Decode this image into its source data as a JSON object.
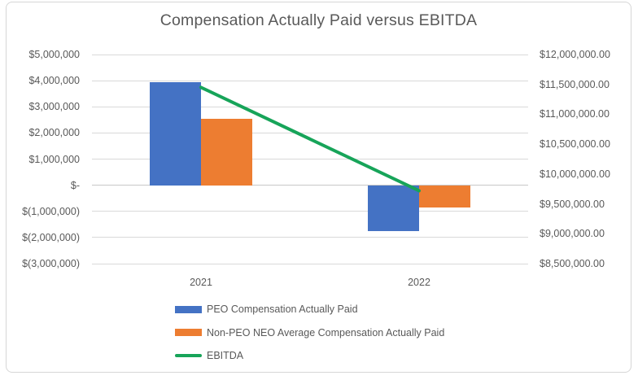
{
  "chart_data": {
    "type": "combo",
    "title": "Compensation Actually Paid versus EBITDA",
    "categories": [
      "2021",
      "2022"
    ],
    "series": [
      {
        "name": "PEO Compensation Actually Paid",
        "type": "bar",
        "axis": "left",
        "color": "#4472C4",
        "values": [
          3950000,
          -1750000
        ]
      },
      {
        "name": "Non-PEO NEO Average Compensation Actually Paid",
        "type": "bar",
        "axis": "left",
        "color": "#ED7D31",
        "values": [
          2550000,
          -850000
        ]
      },
      {
        "name": "EBITDA",
        "type": "line",
        "axis": "right",
        "color": "#17A459",
        "values": [
          11450000,
          9720000
        ]
      }
    ],
    "left_axis": {
      "min": -3000000,
      "max": 5000000,
      "step": 1000000,
      "tick_labels": [
        "$5,000,000",
        "$4,000,000",
        "$3,000,000",
        "$2,000,000",
        "$1,000,000",
        "$-",
        "$(1,000,000)",
        "$(2,000,000)",
        "$(3,000,000)"
      ]
    },
    "right_axis": {
      "min": 8500000,
      "max": 12000000,
      "step": 500000,
      "tick_labels": [
        "$12,000,000.00",
        "$11,500,000.00",
        "$11,000,000.00",
        "$10,500,000.00",
        "$10,000,000.00",
        "$9,500,000.00",
        "$9,000,000.00",
        "$8,500,000.00"
      ]
    },
    "grid": true,
    "legend_position": "bottom-left"
  },
  "colors": {
    "grid": "#D9D9D9",
    "axis_line": "#C8C8C8",
    "frame_border": "#D6D6D6",
    "text": "#595959"
  }
}
